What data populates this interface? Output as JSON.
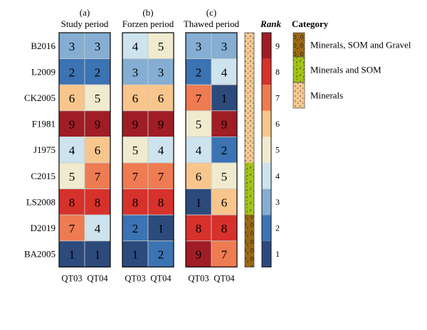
{
  "chart_data": {
    "type": "heatmap",
    "rows": [
      "B2016",
      "L2009",
      "CK2005",
      "F1981",
      "J1975",
      "C2015",
      "LS2008",
      "D2019",
      "BA2005"
    ],
    "columns": [
      "QT03",
      "QT04"
    ],
    "panels": [
      {
        "letter": "(a)",
        "title": "Study period",
        "values": [
          [
            3,
            3
          ],
          [
            2,
            2
          ],
          [
            6,
            5
          ],
          [
            9,
            9
          ],
          [
            4,
            6
          ],
          [
            5,
            7
          ],
          [
            8,
            8
          ],
          [
            7,
            4
          ],
          [
            1,
            1
          ]
        ]
      },
      {
        "letter": "(b)",
        "title": "Forzen period",
        "values": [
          [
            4,
            5
          ],
          [
            3,
            3
          ],
          [
            6,
            6
          ],
          [
            9,
            9
          ],
          [
            5,
            4
          ],
          [
            7,
            7
          ],
          [
            8,
            8
          ],
          [
            2,
            1
          ],
          [
            1,
            2
          ]
        ]
      },
      {
        "letter": "(c)",
        "title": "Thawed period",
        "values": [
          [
            3,
            3
          ],
          [
            2,
            4
          ],
          [
            7,
            1
          ],
          [
            5,
            9
          ],
          [
            4,
            2
          ],
          [
            6,
            5
          ],
          [
            1,
            6
          ],
          [
            8,
            8
          ],
          [
            9,
            7
          ]
        ]
      }
    ],
    "colorbar": {
      "title": "Rank",
      "ticks": [
        1,
        2,
        3,
        4,
        5,
        6,
        7,
        8,
        9
      ],
      "colors": {
        "1": "#2c4a7c",
        "2": "#3b73b3",
        "3": "#85aed2",
        "4": "#cde3ed",
        "5": "#f0ebce",
        "6": "#f8c68c",
        "7": "#ee7b51",
        "8": "#d7312c",
        "9": "#a01d25"
      }
    },
    "category_legend": {
      "title": "Category",
      "items": [
        {
          "label": "Minerals, SOM and Gravel",
          "color": "#9a6914"
        },
        {
          "label": "Minerals and SOM",
          "color": "#a3c414"
        },
        {
          "label": "Minerals",
          "color": "#f7c990"
        }
      ],
      "row_categories": [
        "Minerals",
        "Minerals",
        "Minerals",
        "Minerals",
        "Minerals",
        "Minerals and SOM",
        "Minerals and SOM",
        "Minerals, SOM and Gravel",
        "Minerals, SOM and Gravel"
      ]
    }
  }
}
